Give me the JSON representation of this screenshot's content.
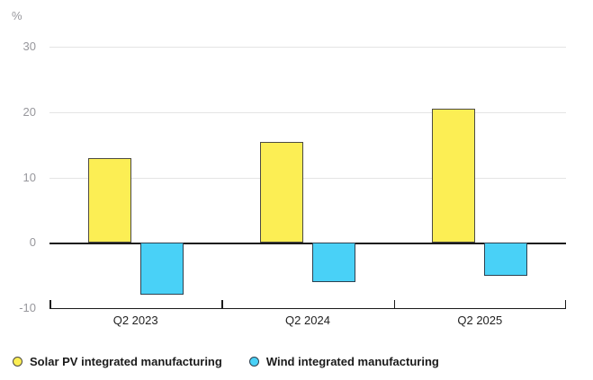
{
  "chart_data": {
    "type": "bar",
    "unit": "%",
    "title": "",
    "xlabel": "",
    "ylabel": "%",
    "categories": [
      "Q2 2023",
      "Q2 2024",
      "Q2 2025"
    ],
    "series": [
      {
        "name": "Solar PV integrated manufacturing",
        "key": "solar",
        "values": [
          13,
          15.5,
          20.5
        ],
        "fill": "#fcee54",
        "stroke": "#4d4b42"
      },
      {
        "name": "Wind integrated manufacturing",
        "key": "wind",
        "values": [
          -8,
          -6,
          -5
        ],
        "fill": "#49d1f7",
        "stroke": "#2d4150"
      }
    ],
    "ylim": [
      -10,
      30
    ],
    "yticks": [
      30,
      20,
      10,
      0,
      -10
    ],
    "grid": true,
    "legend_position": "bottom",
    "colors": {
      "gridline": "#e4e4e4",
      "axis": "#1a1a1a",
      "y_tick_label": "#97979c",
      "x_tick_label": "#1f1f1f",
      "legend_text": "#1a1a1a",
      "background": "#ffffff"
    }
  }
}
